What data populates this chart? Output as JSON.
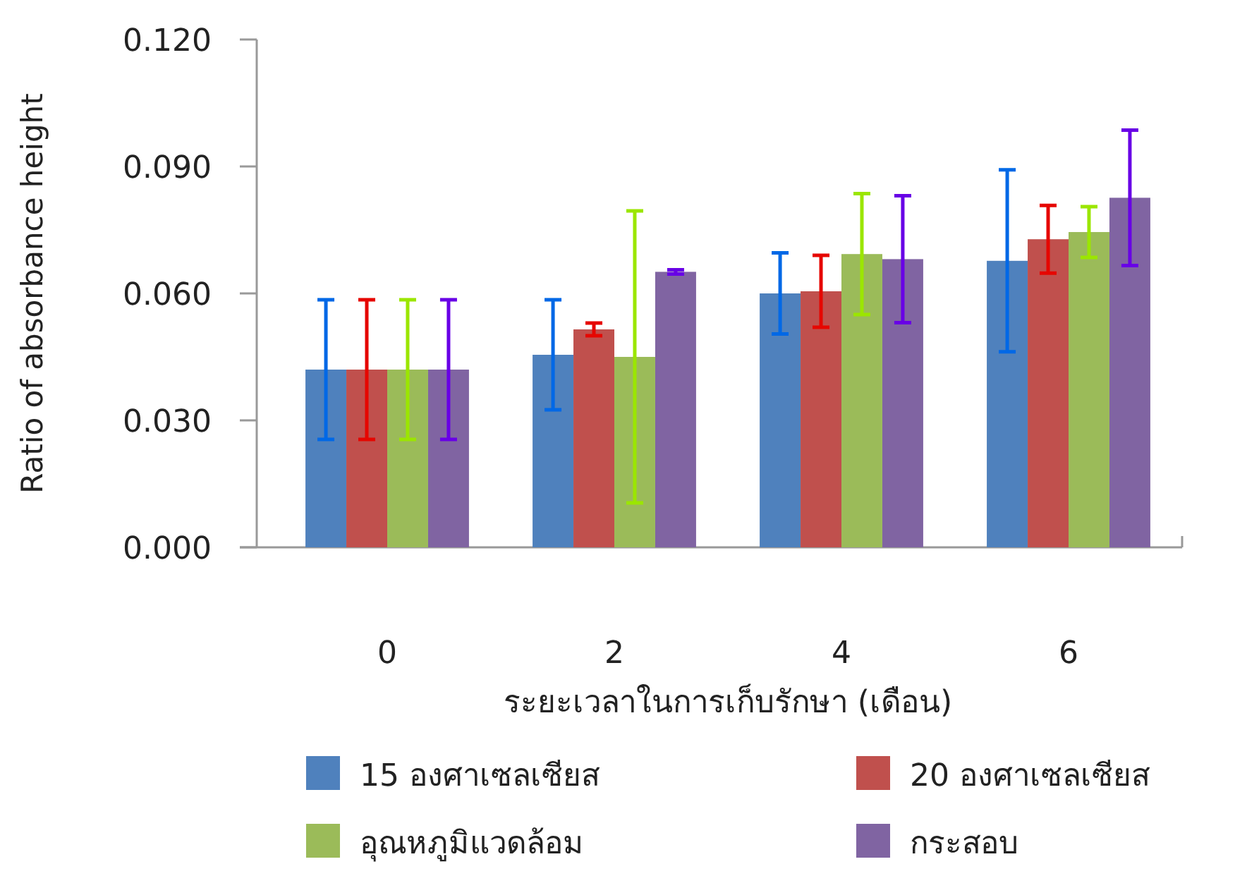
{
  "chart_data": {
    "type": "bar",
    "xlabel": "ระยะเวลาในการเก็บรักษา (เดือน)",
    "ylabel": "Ratio of absorbance height",
    "categories": [
      "0",
      "2",
      "4",
      "6"
    ],
    "ylim": [
      0,
      0.12
    ],
    "yticks": [
      {
        "value": 0,
        "label": "0.000"
      },
      {
        "value": 0.03,
        "label": "0.030"
      },
      {
        "value": 0.06,
        "label": "0.060"
      },
      {
        "value": 0.09,
        "label": "0.090"
      },
      {
        "value": 0.12,
        "label": "0.120"
      }
    ],
    "legend": "bottom",
    "series": [
      {
        "name": "15 องศาเซลเซียส",
        "color": "#4f81bd",
        "values": [
          0.042,
          0.0455,
          0.06,
          0.0677
        ],
        "errors": [
          0.0165,
          0.013,
          0.0096,
          0.0215
        ]
      },
      {
        "name": "20 องศาเซลเซียส",
        "color": "#c0504d",
        "values": [
          0.042,
          0.0515,
          0.0605,
          0.0728
        ],
        "errors": [
          0.0165,
          0.0015,
          0.0085,
          0.008
        ]
      },
      {
        "name": "อุณหภูมิแวดล้อม",
        "color": "#9bbb59",
        "values": [
          0.042,
          0.045,
          0.0693,
          0.0745
        ],
        "errors": [
          0.0165,
          0.0345,
          0.0143,
          0.006
        ]
      },
      {
        "name": "กระสอบ",
        "color": "#8064a2",
        "values": [
          0.042,
          0.0651,
          0.0681,
          0.0826
        ],
        "errors": [
          0.0165,
          0.0005,
          0.015,
          0.016
        ]
      }
    ]
  }
}
